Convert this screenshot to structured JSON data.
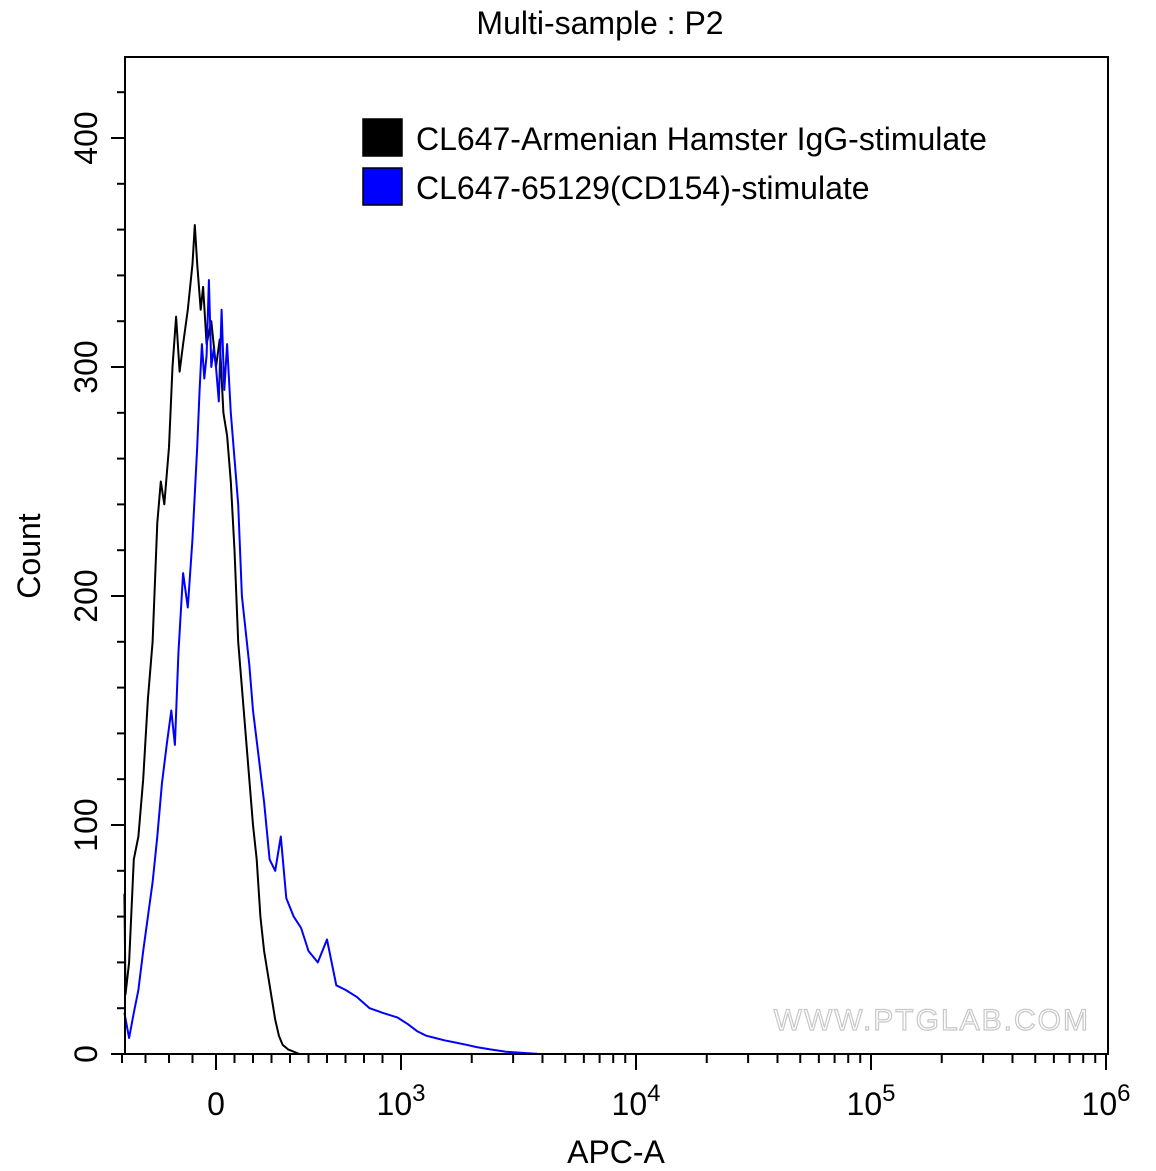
{
  "chart_data": {
    "type": "line",
    "title": "Multi-sample : P2",
    "xlabel": "APC-A",
    "ylabel": "Count",
    "x_scale": "biexponential",
    "ylim": [
      0,
      420
    ],
    "y_ticks": [
      {
        "value": 0,
        "label": "0"
      },
      {
        "value": 100,
        "label": "100"
      },
      {
        "value": 200,
        "label": "200"
      },
      {
        "value": 300,
        "label": "300"
      },
      {
        "value": 400,
        "label": "400"
      }
    ],
    "x_ticks": [
      {
        "value": 0,
        "base": "0",
        "exp": ""
      },
      {
        "value": 1000,
        "base": "10",
        "exp": "3"
      },
      {
        "value": 10000,
        "base": "10",
        "exp": "4"
      },
      {
        "value": 100000,
        "base": "10",
        "exp": "5"
      },
      {
        "value": 1000000,
        "base": "10",
        "exp": "6"
      }
    ],
    "legend_position": "top-right",
    "watermark": "WWW.PTGLAB.COM",
    "series": [
      {
        "name": "CL647-Armenian Hamster IgG-stimulate",
        "color": "#000000",
        "points": [
          [
            -390,
            70
          ],
          [
            -385,
            26
          ],
          [
            -370,
            40
          ],
          [
            -350,
            85
          ],
          [
            -330,
            95
          ],
          [
            -310,
            120
          ],
          [
            -290,
            155
          ],
          [
            -270,
            180
          ],
          [
            -250,
            232
          ],
          [
            -235,
            250
          ],
          [
            -220,
            240
          ],
          [
            -200,
            265
          ],
          [
            -185,
            300
          ],
          [
            -170,
            322
          ],
          [
            -155,
            298
          ],
          [
            -140,
            310
          ],
          [
            -120,
            325
          ],
          [
            -100,
            345
          ],
          [
            -90,
            362
          ],
          [
            -80,
            345
          ],
          [
            -65,
            325
          ],
          [
            -55,
            335
          ],
          [
            -40,
            310
          ],
          [
            -20,
            320
          ],
          [
            0,
            300
          ],
          [
            20,
            312
          ],
          [
            40,
            280
          ],
          [
            60,
            270
          ],
          [
            80,
            250
          ],
          [
            100,
            220
          ],
          [
            120,
            180
          ],
          [
            140,
            160
          ],
          [
            160,
            140
          ],
          [
            180,
            120
          ],
          [
            200,
            100
          ],
          [
            220,
            85
          ],
          [
            240,
            60
          ],
          [
            260,
            45
          ],
          [
            280,
            35
          ],
          [
            300,
            25
          ],
          [
            320,
            15
          ],
          [
            340,
            8
          ],
          [
            360,
            4
          ],
          [
            390,
            2
          ],
          [
            420,
            1
          ],
          [
            450,
            0
          ]
        ]
      },
      {
        "name": "CL647-65129(CD154)-stimulate",
        "color": "#0000ff",
        "points": [
          [
            -390,
            18
          ],
          [
            -370,
            7
          ],
          [
            -350,
            18
          ],
          [
            -330,
            28
          ],
          [
            -310,
            45
          ],
          [
            -290,
            60
          ],
          [
            -270,
            75
          ],
          [
            -250,
            95
          ],
          [
            -230,
            118
          ],
          [
            -210,
            135
          ],
          [
            -190,
            150
          ],
          [
            -175,
            135
          ],
          [
            -160,
            175
          ],
          [
            -140,
            210
          ],
          [
            -120,
            195
          ],
          [
            -100,
            225
          ],
          [
            -80,
            265
          ],
          [
            -70,
            290
          ],
          [
            -60,
            310
          ],
          [
            -50,
            295
          ],
          [
            -40,
            305
          ],
          [
            -30,
            338
          ],
          [
            -20,
            300
          ],
          [
            -10,
            308
          ],
          [
            0,
            300
          ],
          [
            15,
            285
          ],
          [
            30,
            325
          ],
          [
            45,
            290
          ],
          [
            60,
            310
          ],
          [
            80,
            280
          ],
          [
            100,
            260
          ],
          [
            120,
            240
          ],
          [
            140,
            200
          ],
          [
            160,
            185
          ],
          [
            180,
            170
          ],
          [
            200,
            150
          ],
          [
            230,
            130
          ],
          [
            260,
            110
          ],
          [
            290,
            85
          ],
          [
            320,
            80
          ],
          [
            350,
            95
          ],
          [
            380,
            68
          ],
          [
            420,
            60
          ],
          [
            460,
            55
          ],
          [
            500,
            45
          ],
          [
            550,
            40
          ],
          [
            600,
            50
          ],
          [
            650,
            30
          ],
          [
            700,
            28
          ],
          [
            760,
            25
          ],
          [
            830,
            20
          ],
          [
            900,
            18
          ],
          [
            980,
            16
          ],
          [
            1070,
            13
          ],
          [
            1170,
            10
          ],
          [
            1280,
            8
          ],
          [
            1400,
            7
          ],
          [
            1530,
            6
          ],
          [
            1700,
            5
          ],
          [
            1900,
            4
          ],
          [
            2100,
            3
          ],
          [
            2400,
            2
          ],
          [
            2800,
            1
          ],
          [
            3300,
            0.5
          ],
          [
            3900,
            0
          ]
        ]
      }
    ]
  }
}
